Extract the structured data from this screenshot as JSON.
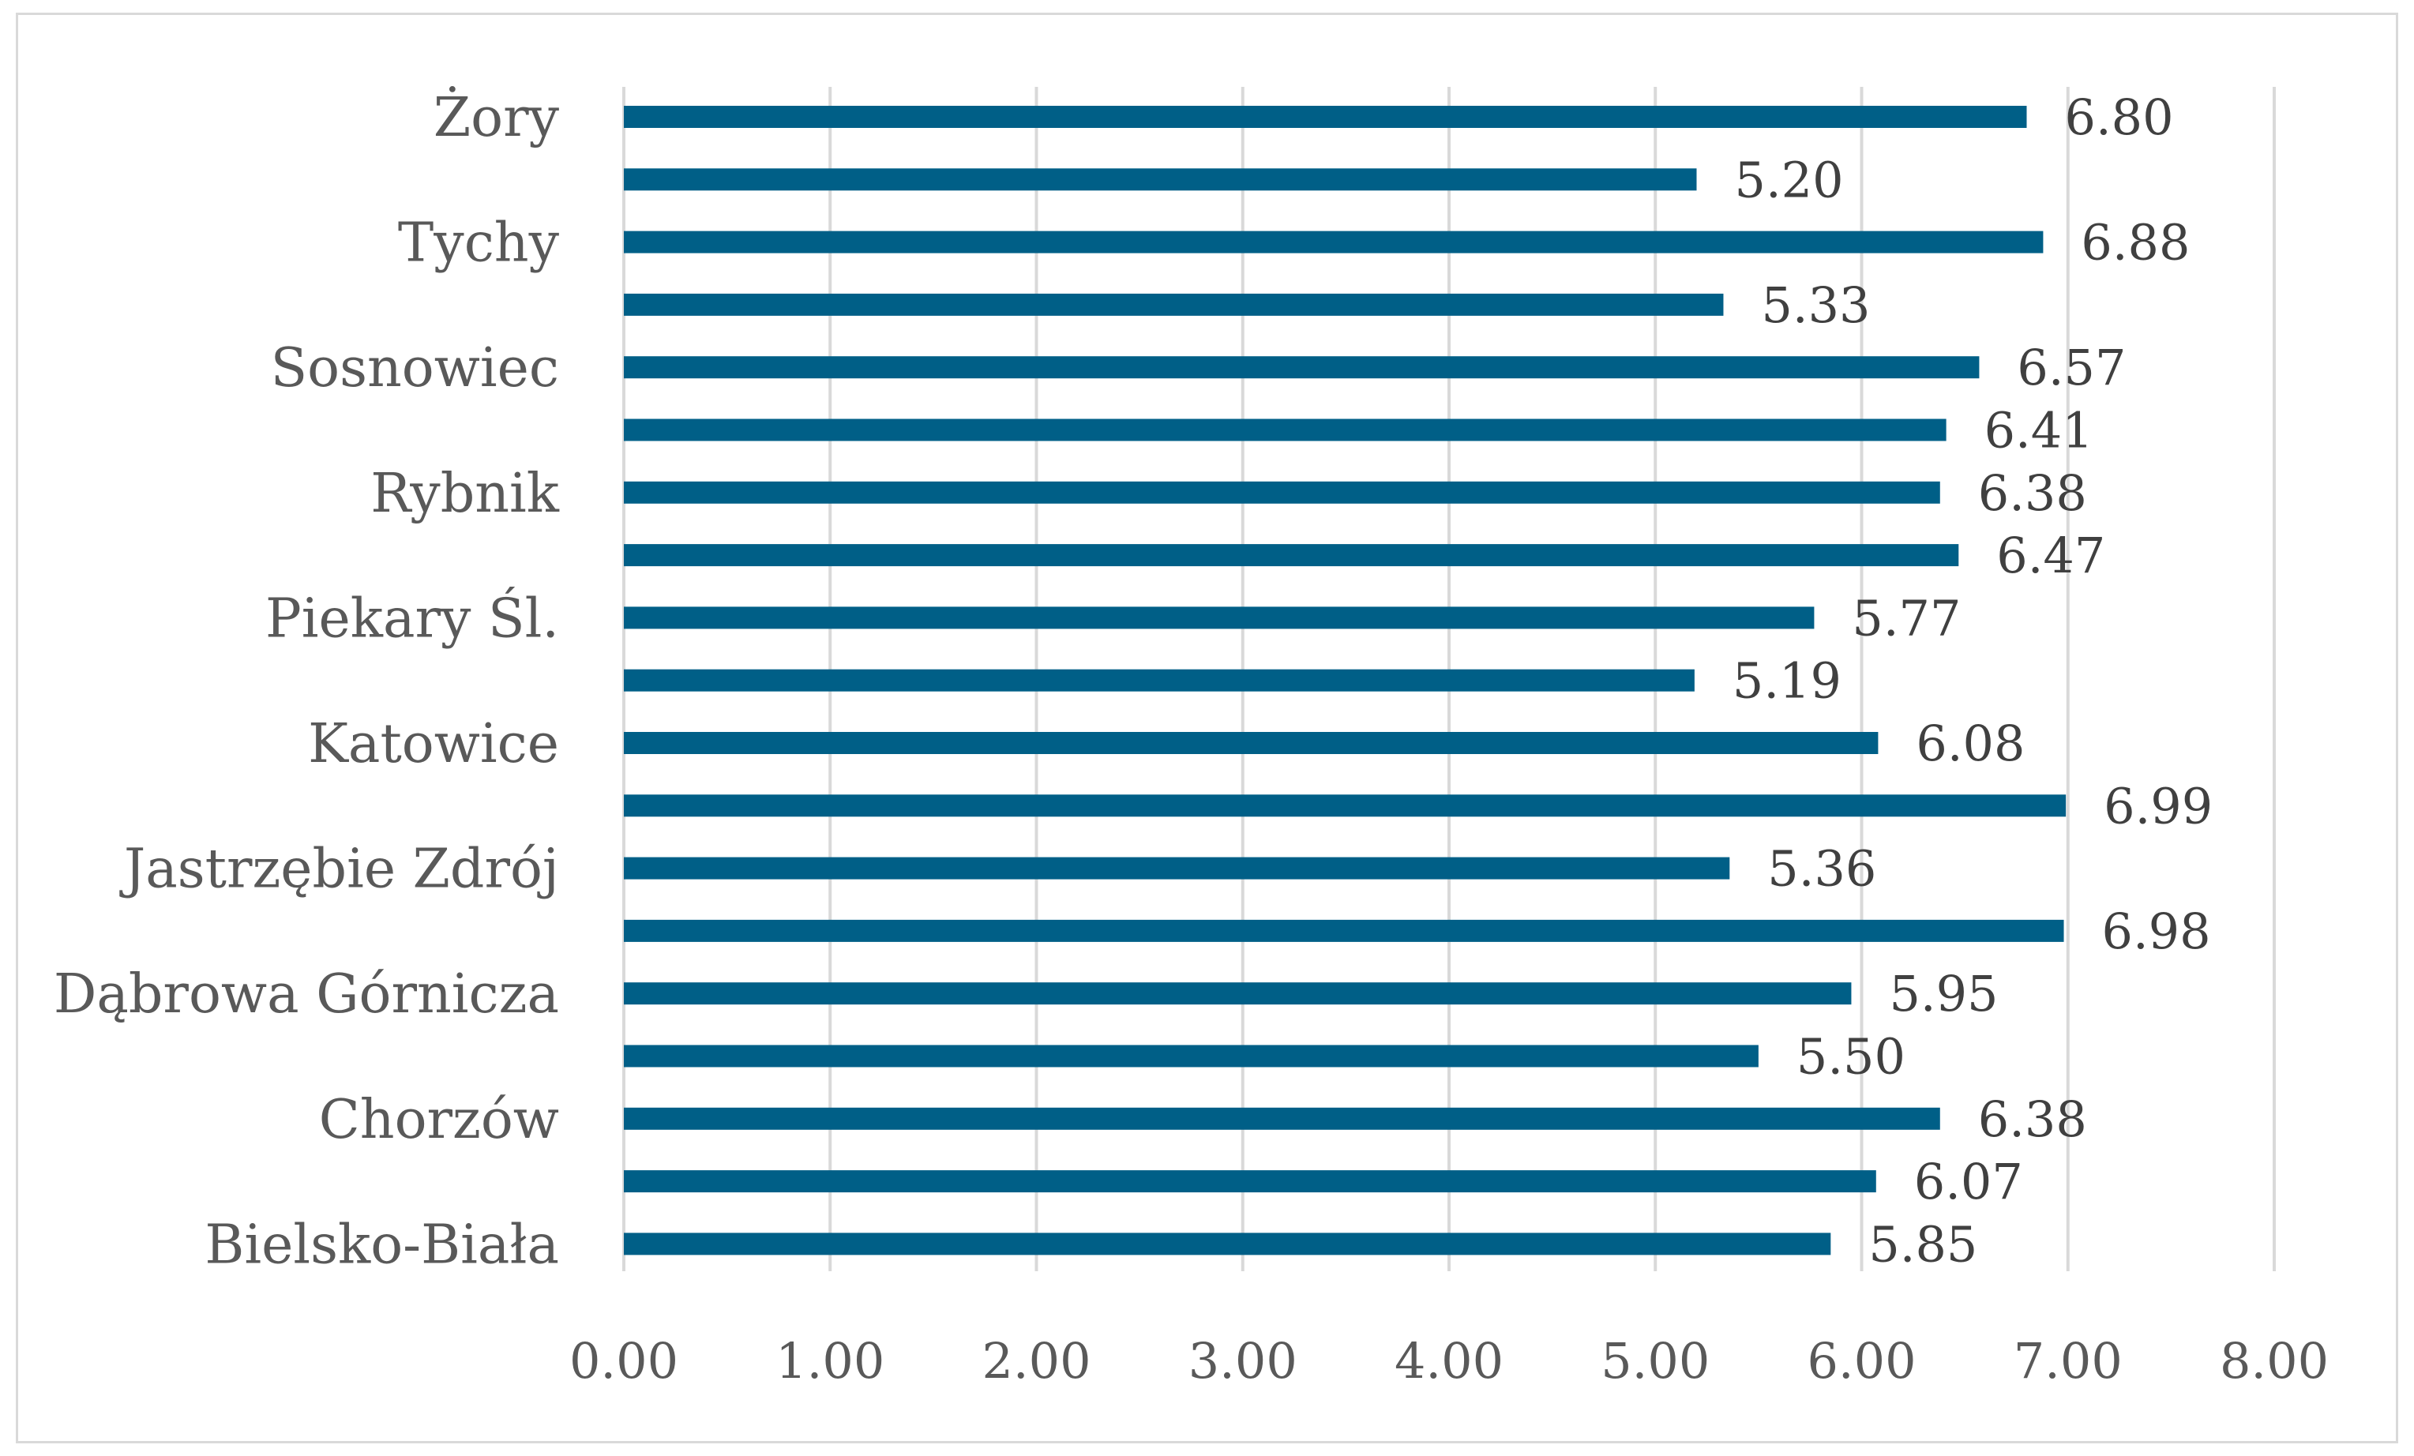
{
  "chart_data": {
    "type": "bar",
    "orientation": "horizontal",
    "title": "",
    "xlabel": "",
    "ylabel": "",
    "xlim": [
      0,
      8
    ],
    "x_ticks": [
      "0.00",
      "1.00",
      "2.00",
      "3.00",
      "4.00",
      "5.00",
      "6.00",
      "7.00",
      "8.00"
    ],
    "grid": "vertical",
    "bar_color": "#005f87",
    "bars_top_to_bottom": [
      {
        "label": "Żory",
        "value": 6.8,
        "value_label": "6.80"
      },
      {
        "label": "",
        "value": 5.2,
        "value_label": "5.20"
      },
      {
        "label": "Tychy",
        "value": 6.88,
        "value_label": "6.88"
      },
      {
        "label": "",
        "value": 5.33,
        "value_label": "5.33"
      },
      {
        "label": "Sosnowiec",
        "value": 6.57,
        "value_label": "6.57"
      },
      {
        "label": "",
        "value": 6.41,
        "value_label": "6.41"
      },
      {
        "label": "Rybnik",
        "value": 6.38,
        "value_label": "6.38"
      },
      {
        "label": "",
        "value": 6.47,
        "value_label": "6.47"
      },
      {
        "label": "Piekary Śl.",
        "value": 5.77,
        "value_label": "5.77"
      },
      {
        "label": "",
        "value": 5.19,
        "value_label": "5.19"
      },
      {
        "label": "Katowice",
        "value": 6.08,
        "value_label": "6.08"
      },
      {
        "label": "",
        "value": 6.99,
        "value_label": "6.99"
      },
      {
        "label": "Jastrzębie Zdrój",
        "value": 5.36,
        "value_label": "5.36"
      },
      {
        "label": "",
        "value": 6.98,
        "value_label": "6.98"
      },
      {
        "label": "Dąbrowa Górnicza",
        "value": 5.95,
        "value_label": "5.95"
      },
      {
        "label": "",
        "value": 5.5,
        "value_label": "5.50"
      },
      {
        "label": "Chorzów",
        "value": 6.38,
        "value_label": "6.38"
      },
      {
        "label": "",
        "value": 6.07,
        "value_label": "6.07"
      },
      {
        "label": "Bielsko-Biała",
        "value": 5.85,
        "value_label": "5.85"
      }
    ]
  }
}
